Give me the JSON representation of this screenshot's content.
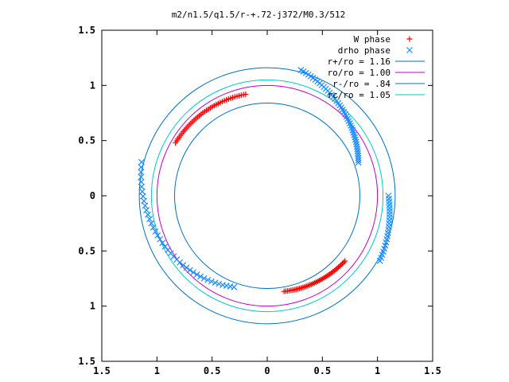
{
  "chart_data": {
    "type": "scatter",
    "title": "m2/n1.5/q1.5/r-+.72-j372/M0.3/512",
    "xlabel": "",
    "ylabel": "",
    "xlim": [
      -1.5,
      1.5
    ],
    "ylim": [
      -1.5,
      1.5
    ],
    "x_ticks": [
      -1.5,
      -1,
      -0.5,
      0,
      0.5,
      1,
      1.5
    ],
    "x_tick_labels": [
      "1.5",
      "1",
      "0.5",
      "0",
      "0.5",
      "1",
      "1.5"
    ],
    "y_ticks": [
      1.5,
      1,
      0.5,
      0,
      -0.5,
      -1,
      -1.5
    ],
    "y_tick_labels": [
      "1.5",
      "1",
      "0.5",
      "0",
      "0.5",
      "1",
      "1.5"
    ],
    "grid": false,
    "legend_position": "top-right",
    "series": [
      {
        "name": "W phase",
        "kind": "points",
        "marker": "+",
        "color": "#ff0000",
        "arcs": [
          {
            "r_start": 0.94,
            "r_end": 0.96,
            "deg_start": 102,
            "deg_end": 150,
            "count": 40
          },
          {
            "r_start": 0.88,
            "r_end": 0.92,
            "deg_start": -80,
            "deg_end": -40,
            "count": 40
          }
        ]
      },
      {
        "name": "drho phase",
        "kind": "points",
        "marker": "x",
        "color": "#1a8cff",
        "arcs": [
          {
            "r_start": 0.88,
            "r_end": 1.18,
            "deg_start": 20,
            "deg_end": 75,
            "count": 45
          },
          {
            "r_start": 1.18,
            "r_end": 1.1,
            "deg_start": -30,
            "deg_end": 0,
            "count": 22
          },
          {
            "r_start": 1.18,
            "r_end": 0.88,
            "deg_start": 165,
            "deg_end": 250,
            "count": 40
          }
        ]
      },
      {
        "name": "r+/ro = 1.16",
        "kind": "circle",
        "radius": 1.16,
        "color": "#0070c0"
      },
      {
        "name": "ro/ro = 1.00",
        "kind": "circle",
        "radius": 1.0,
        "color": "#c000c0"
      },
      {
        "name": "r-/ro = .84",
        "kind": "circle",
        "radius": 0.84,
        "color": "#0070c0"
      },
      {
        "name": "rc/ro = 1.05",
        "kind": "circle",
        "radius": 1.05,
        "color": "#00c8c8"
      }
    ]
  }
}
